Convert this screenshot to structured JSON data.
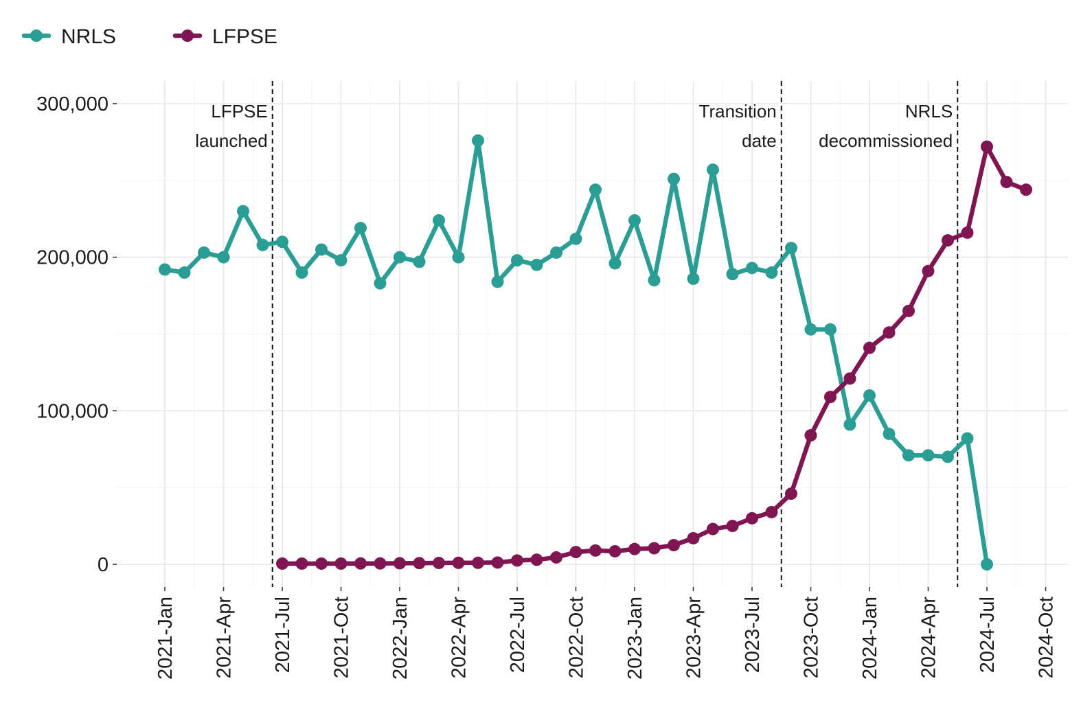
{
  "chart_data": {
    "type": "line",
    "title": "",
    "xlabel": "",
    "ylabel": "",
    "colors": {
      "NRLS": "#2a9d94",
      "LFPSE": "#7f1651"
    },
    "legend": {
      "placement": "top-left",
      "entries": [
        "NRLS",
        "LFPSE"
      ]
    },
    "grid": true,
    "ylim": [
      0,
      300000
    ],
    "y_ticks": [
      0,
      100000,
      200000,
      300000
    ],
    "y_tick_labels": [
      "0",
      "100,000",
      "200,000",
      "300,000"
    ],
    "xlim": [
      "2020-12",
      "2024-10"
    ],
    "x_ticks": [
      "2021-01",
      "2021-04",
      "2021-07",
      "2021-10",
      "2022-01",
      "2022-04",
      "2022-07",
      "2022-10",
      "2023-01",
      "2023-04",
      "2023-07",
      "2023-10",
      "2024-01",
      "2024-04",
      "2024-07",
      "2024-10"
    ],
    "x_tick_labels": [
      "2021-Jan",
      "2021-Apr",
      "2021-Jul",
      "2021-Oct",
      "2022-Jan",
      "2022-Apr",
      "2022-Jul",
      "2022-Oct",
      "2023-Jan",
      "2023-Apr",
      "2023-Jul",
      "2023-Oct",
      "2024-Jan",
      "2024-Apr",
      "2024-Jul",
      "2024-Oct"
    ],
    "series": [
      {
        "name": "NRLS",
        "x": [
          "2021-01",
          "2021-02",
          "2021-03",
          "2021-04",
          "2021-05",
          "2021-06",
          "2021-07",
          "2021-08",
          "2021-09",
          "2021-10",
          "2021-11",
          "2021-12",
          "2022-01",
          "2022-02",
          "2022-03",
          "2022-04",
          "2022-05",
          "2022-06",
          "2022-07",
          "2022-08",
          "2022-09",
          "2022-10",
          "2022-11",
          "2022-12",
          "2023-01",
          "2023-02",
          "2023-03",
          "2023-04",
          "2023-05",
          "2023-06",
          "2023-07",
          "2023-08",
          "2023-09",
          "2023-10",
          "2023-11",
          "2023-12",
          "2024-01",
          "2024-02",
          "2024-03",
          "2024-04",
          "2024-05",
          "2024-06",
          "2024-07"
        ],
        "values": [
          192000,
          190000,
          203000,
          200000,
          230000,
          208000,
          210000,
          190000,
          205000,
          198000,
          219000,
          183000,
          200000,
          197000,
          224000,
          200000,
          276000,
          184000,
          198000,
          195000,
          203000,
          212000,
          244000,
          196000,
          224000,
          185000,
          251000,
          186000,
          257000,
          189000,
          193000,
          190000,
          206000,
          153000,
          153000,
          91000,
          110000,
          85000,
          71000,
          71000,
          70000,
          82000,
          0
        ]
      },
      {
        "name": "LFPSE",
        "x": [
          "2021-07",
          "2021-08",
          "2021-09",
          "2021-10",
          "2021-11",
          "2021-12",
          "2022-01",
          "2022-02",
          "2022-03",
          "2022-04",
          "2022-05",
          "2022-06",
          "2022-07",
          "2022-08",
          "2022-09",
          "2022-10",
          "2022-11",
          "2022-12",
          "2023-01",
          "2023-02",
          "2023-03",
          "2023-04",
          "2023-05",
          "2023-06",
          "2023-07",
          "2023-08",
          "2023-09",
          "2023-10",
          "2023-11",
          "2023-12",
          "2024-01",
          "2024-02",
          "2024-03",
          "2024-04",
          "2024-05",
          "2024-06",
          "2024-07",
          "2024-08",
          "2024-09"
        ],
        "values": [
          500,
          500,
          500,
          500,
          600,
          600,
          700,
          800,
          900,
          1000,
          1000,
          1200,
          2500,
          3000,
          4500,
          8000,
          9000,
          8500,
          10000,
          10500,
          12500,
          17000,
          23000,
          25000,
          30000,
          34000,
          46000,
          84000,
          109000,
          121000,
          141000,
          151000,
          165000,
          191000,
          211000,
          216000,
          272000,
          249000,
          244000
        ]
      }
    ],
    "annotations": [
      {
        "x": "2021-07",
        "lines": [
          "LFPSE",
          "launched"
        ]
      },
      {
        "x": "2023-09",
        "lines": [
          "Transition",
          "date"
        ]
      },
      {
        "x": "2024-06",
        "lines": [
          "NRLS",
          "decommissioned"
        ]
      }
    ]
  }
}
